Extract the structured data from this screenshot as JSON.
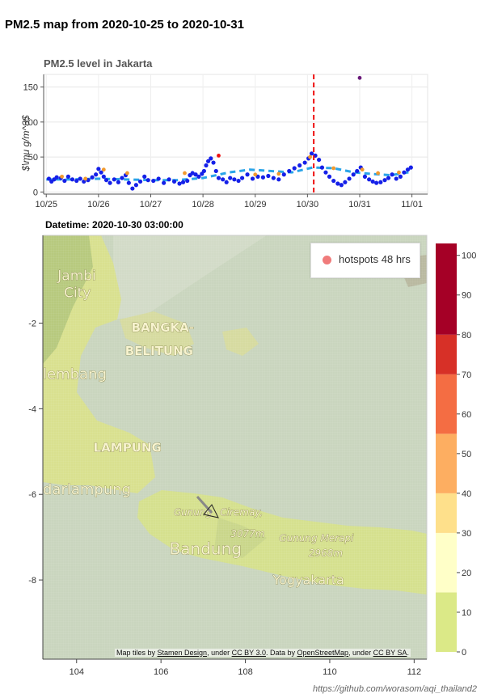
{
  "page": {
    "main_title": "PM2.5 map from 2020-10-25 to 2020-10-31",
    "footer": "https://github.com/worasom/aqi_thailand2"
  },
  "chart_data": [
    {
      "type": "scatter",
      "title": "PM2.5 level in Jakarta",
      "ylabel": "$\\mu g/m^3$",
      "xlabel": "",
      "x_ticks": [
        "10/25",
        "10/26",
        "10/27",
        "10/28",
        "10/29",
        "10/30",
        "10/31",
        "11/01"
      ],
      "y_ticks": [
        0,
        50,
        100,
        150
      ],
      "xlim": [
        -0.05,
        7.3
      ],
      "ylim": [
        -3,
        168
      ],
      "grid": true,
      "marker_line_day": 5.12,
      "colors": {
        "obs": "#1520e8",
        "avg": "#2aa4e8",
        "marker": "#ee1111",
        "accent": "#f29a2e",
        "outlier": "#6a1a7a"
      },
      "series": [
        {
          "kind": "points",
          "x": [
            0.05,
            0.1,
            0.15,
            0.2,
            0.28,
            0.35,
            0.42,
            0.5,
            0.58,
            0.65,
            0.72,
            0.8,
            0.88,
            0.95,
            1.0,
            1.05,
            1.1,
            1.15,
            1.22,
            1.3,
            1.38,
            1.45,
            1.52,
            1.58,
            1.65,
            1.72,
            1.8,
            1.88,
            1.95,
            2.05,
            2.15,
            2.25,
            2.35,
            2.45,
            2.55,
            2.62,
            2.7,
            2.75,
            2.8,
            2.86,
            2.92,
            2.98,
            3.02,
            3.06,
            3.1,
            3.15,
            3.2,
            3.25,
            3.3,
            3.38,
            3.45,
            3.52,
            3.6,
            3.68,
            3.75,
            3.85,
            3.95,
            4.05,
            4.15,
            4.25,
            4.35,
            4.45,
            4.55,
            4.65,
            4.75,
            4.85,
            4.95,
            5.02,
            5.08,
            5.15,
            5.22,
            5.28,
            5.35,
            5.42,
            5.5,
            5.58,
            5.65,
            5.72,
            5.8,
            5.88,
            5.95,
            6.02,
            6.1,
            6.18,
            6.25,
            6.32,
            6.4,
            6.48,
            6.55,
            6.62,
            6.7,
            6.78,
            6.85,
            6.92,
            6.98
          ],
          "y": [
            19,
            15,
            18,
            21,
            20,
            16,
            22,
            18,
            16,
            19,
            15,
            17,
            21,
            25,
            33,
            28,
            22,
            17,
            13,
            18,
            14,
            20,
            24,
            13,
            5,
            10,
            15,
            22,
            17,
            16,
            19,
            13,
            18,
            15,
            12,
            14,
            16,
            24,
            27,
            25,
            22,
            26,
            30,
            38,
            44,
            48,
            42,
            30,
            20,
            18,
            14,
            20,
            18,
            16,
            20,
            25,
            19,
            22,
            21,
            23,
            20,
            18,
            25,
            30,
            34,
            38,
            42,
            48,
            55,
            52,
            46,
            35,
            28,
            22,
            16,
            12,
            10,
            14,
            19,
            25,
            30,
            35,
            22,
            18,
            15,
            13,
            14,
            17,
            20,
            25,
            19,
            22,
            28,
            32,
            35
          ]
        },
        {
          "kind": "line",
          "name": "avg",
          "x": [
            0.0,
            0.5,
            1.0,
            1.5,
            2.0,
            2.5,
            3.0,
            3.5,
            3.9,
            4.3,
            4.7,
            5.1,
            5.5,
            5.9,
            6.2,
            6.6,
            7.0
          ],
          "y": [
            18,
            18,
            19,
            18,
            17,
            17,
            20,
            28,
            32,
            30,
            28,
            35,
            34,
            28,
            26,
            24,
            29
          ]
        },
        {
          "kind": "accent",
          "x": [
            0.3,
            0.75,
            1.1,
            1.55,
            2.65,
            3.3,
            4.0,
            4.45,
            5.05,
            5.5,
            6.05,
            6.35,
            6.75
          ],
          "y": [
            22,
            19,
            32,
            27,
            27,
            52,
            25,
            26,
            50,
            34,
            32,
            27,
            28
          ]
        },
        {
          "kind": "outlier",
          "x": [
            6.0
          ],
          "y": [
            163
          ]
        }
      ]
    },
    {
      "type": "heatmap",
      "title": "Datetime: 2020-10-30 03:00:00",
      "x_ticks": [
        104,
        106,
        108,
        110,
        112
      ],
      "y_ticks": [
        -2,
        -4,
        -6,
        -8
      ],
      "xlim": [
        103.2,
        112.3
      ],
      "ylim": [
        -9.85,
        0.05
      ],
      "legend": "hotspots 48 hrs",
      "colorbar": {
        "ticks": [
          0,
          10,
          20,
          30,
          40,
          50,
          60,
          70,
          80,
          90,
          100
        ],
        "bins": [
          {
            "from": 0,
            "to": 15,
            "color": "#dbe987"
          },
          {
            "from": 15,
            "to": 30,
            "color": "#ffffc8"
          },
          {
            "from": 30,
            "to": 40,
            "color": "#fee08b"
          },
          {
            "from": 40,
            "to": 55,
            "color": "#fdae61"
          },
          {
            "from": 55,
            "to": 70,
            "color": "#f46d43"
          },
          {
            "from": 70,
            "to": 80,
            "color": "#d73027"
          },
          {
            "from": 80,
            "to": 103,
            "color": "#a50026"
          }
        ]
      },
      "places": [
        {
          "name": "Jambi",
          "lon": 103.55,
          "lat": -1.0
        },
        {
          "name": "City",
          "lon": 103.7,
          "lat": -1.4
        },
        {
          "name": "BANGKA-",
          "lon": 105.3,
          "lat": -2.2
        },
        {
          "name": "BELITUNG",
          "lon": 105.15,
          "lat": -2.75
        },
        {
          "name": "lembang",
          "lon": 103.2,
          "lat": -3.3
        },
        {
          "name": "LAMPUNG",
          "lon": 104.4,
          "lat": -5.0
        },
        {
          "name": "darlampung",
          "lon": 103.2,
          "lat": -6.0
        },
        {
          "name": "Gunung",
          "lon": 106.3,
          "lat": -6.5
        },
        {
          "name": "Ciremay,",
          "lon": 107.4,
          "lat": -6.5
        },
        {
          "name": "3077m",
          "lon": 107.65,
          "lat": -7.0
        },
        {
          "name": "Bandung",
          "lon": 106.2,
          "lat": -7.4
        },
        {
          "name": "Gunung Merapi",
          "lon": 108.8,
          "lat": -7.1
        },
        {
          "name": "2968m",
          "lon": 109.5,
          "lat": -7.45
        },
        {
          "name": "Yogyakarta",
          "lon": 108.65,
          "lat": -8.1
        }
      ],
      "attribution": {
        "p1": "Map tiles by ",
        "l1": "Stamen Design",
        "p2": ", under ",
        "l2": "CC BY 3.0",
        "p3": ". Data by ",
        "l3": "OpenStreetMap",
        "p4": ", under ",
        "l4": "CC BY SA",
        "p5": "."
      }
    }
  ]
}
